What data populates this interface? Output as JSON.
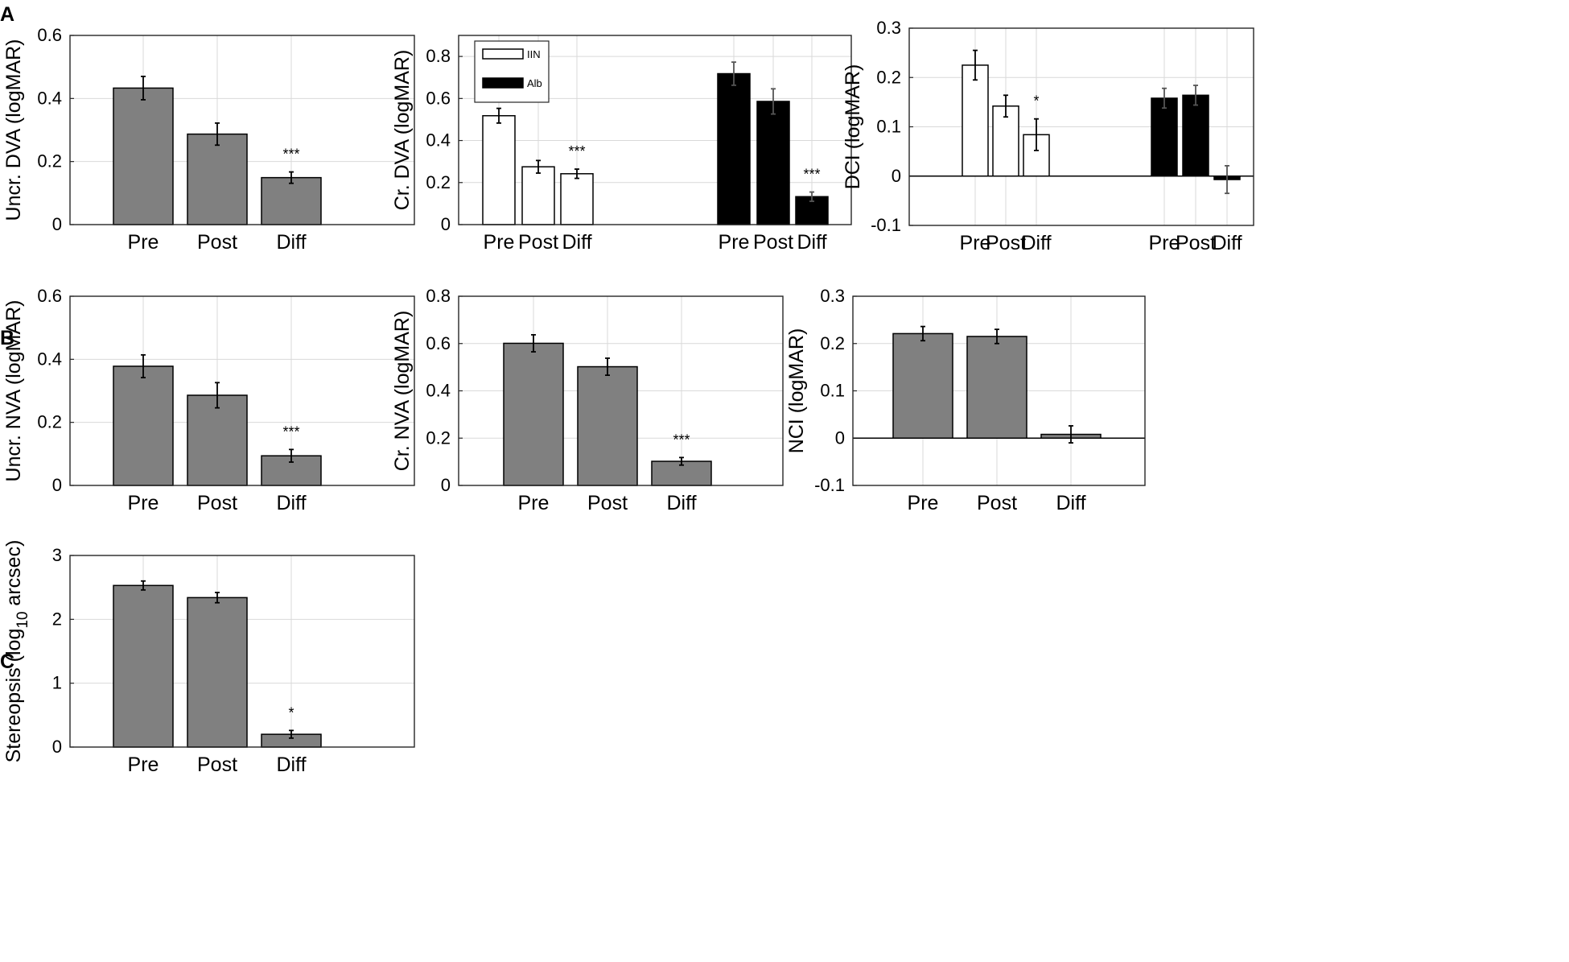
{
  "panel_labels": [
    "A",
    "B",
    "C"
  ],
  "colors": {
    "gray": "#808080",
    "black": "#000000",
    "white": "#ffffff",
    "grid": "#d9d9d9",
    "axis": "#262626"
  },
  "chart_data": [
    {
      "id": "A1",
      "type": "bar",
      "panel": "A",
      "title": "",
      "xlabel": "",
      "ylabel": "Uncr. DVA (logMAR)",
      "ylim": [
        0,
        0.6
      ],
      "yticks": [
        0,
        0.2,
        0.4,
        0.6
      ],
      "ytick_labels": [
        "0",
        "0.2",
        "0.4",
        "0.6"
      ],
      "groups": [
        {
          "name": "",
          "fill": "gray",
          "categories": [
            "Pre",
            "Post",
            "Diff"
          ],
          "values": [
            0.433,
            0.287,
            0.149
          ],
          "errors": [
            0.037,
            0.035,
            0.018
          ],
          "stars": [
            "",
            "",
            "***"
          ]
        }
      ]
    },
    {
      "id": "A2",
      "type": "bar",
      "panel": "A",
      "title": "",
      "xlabel": "",
      "ylabel": "Cr. DVA (logMAR)",
      "ylim": [
        0,
        0.9
      ],
      "yticks": [
        0,
        0.2,
        0.4,
        0.6,
        0.8
      ],
      "ytick_labels": [
        "0",
        "0.2",
        "0.4",
        "0.6",
        "0.8"
      ],
      "legend": [
        {
          "label": "IIN",
          "fill": "white"
        },
        {
          "label": "Alb",
          "fill": "black"
        }
      ],
      "groups": [
        {
          "name": "IIN",
          "fill": "white",
          "categories": [
            "Pre",
            "Post",
            "Diff"
          ],
          "values": [
            0.518,
            0.275,
            0.242
          ],
          "errors": [
            0.035,
            0.03,
            0.022
          ],
          "stars": [
            "",
            "",
            "***"
          ]
        },
        {
          "name": "Alb",
          "fill": "black",
          "categories": [
            "Pre",
            "Post",
            "Diff"
          ],
          "values": [
            0.718,
            0.586,
            0.133
          ],
          "errors": [
            0.055,
            0.06,
            0.022
          ],
          "stars": [
            "",
            "",
            "***"
          ]
        }
      ]
    },
    {
      "id": "A3",
      "type": "bar",
      "panel": "A",
      "title": "",
      "xlabel": "",
      "ylabel": "DCI (logMAR)",
      "ylim": [
        -0.1,
        0.3
      ],
      "yticks": [
        -0.1,
        0,
        0.1,
        0.2,
        0.3
      ],
      "ytick_labels": [
        "-0.1",
        "0",
        "0.1",
        "0.2",
        "0.3"
      ],
      "groups": [
        {
          "name": "IIN",
          "fill": "white",
          "categories": [
            "Pre",
            "Post",
            "Diff"
          ],
          "values": [
            0.225,
            0.142,
            0.084
          ],
          "errors": [
            0.03,
            0.022,
            0.032
          ],
          "stars": [
            "",
            "",
            "*"
          ]
        },
        {
          "name": "Alb",
          "fill": "black",
          "categories": [
            "Pre",
            "Post",
            "Diff"
          ],
          "values": [
            0.158,
            0.164,
            -0.007
          ],
          "errors": [
            0.02,
            0.02,
            0.028
          ],
          "stars": [
            "",
            "",
            ""
          ]
        }
      ]
    },
    {
      "id": "B1",
      "type": "bar",
      "panel": "B",
      "title": "",
      "xlabel": "",
      "ylabel": "Uncr. NVA (logMAR)",
      "ylim": [
        0,
        0.6
      ],
      "yticks": [
        0,
        0.2,
        0.4,
        0.6
      ],
      "ytick_labels": [
        "0",
        "0.2",
        "0.4",
        "0.6"
      ],
      "groups": [
        {
          "name": "",
          "fill": "gray",
          "categories": [
            "Pre",
            "Post",
            "Diff"
          ],
          "values": [
            0.378,
            0.286,
            0.094
          ],
          "errors": [
            0.036,
            0.04,
            0.02
          ],
          "stars": [
            "",
            "",
            "***"
          ]
        }
      ]
    },
    {
      "id": "B2",
      "type": "bar",
      "panel": "B",
      "title": "",
      "xlabel": "",
      "ylabel": "Cr. NVA (logMAR)",
      "ylim": [
        0,
        0.8
      ],
      "yticks": [
        0,
        0.2,
        0.4,
        0.6,
        0.8
      ],
      "ytick_labels": [
        "0",
        "0.2",
        "0.4",
        "0.6",
        "0.8"
      ],
      "groups": [
        {
          "name": "",
          "fill": "gray",
          "categories": [
            "Pre",
            "Post",
            "Diff"
          ],
          "values": [
            0.601,
            0.502,
            0.102
          ],
          "errors": [
            0.036,
            0.036,
            0.016
          ],
          "stars": [
            "",
            "",
            "***"
          ]
        }
      ]
    },
    {
      "id": "B3",
      "type": "bar",
      "panel": "B",
      "title": "",
      "xlabel": "",
      "ylabel": "NCI (logMAR)",
      "ylim": [
        -0.1,
        0.3
      ],
      "yticks": [
        -0.1,
        0,
        0.1,
        0.2,
        0.3
      ],
      "ytick_labels": [
        "-0.1",
        "0",
        "0.1",
        "0.2",
        "0.3"
      ],
      "groups": [
        {
          "name": "",
          "fill": "gray",
          "categories": [
            "Pre",
            "Post",
            "Diff"
          ],
          "values": [
            0.221,
            0.215,
            0.008
          ],
          "errors": [
            0.015,
            0.015,
            0.018
          ],
          "stars": [
            "",
            "",
            ""
          ]
        }
      ]
    },
    {
      "id": "C1",
      "type": "bar",
      "panel": "C",
      "title": "",
      "xlabel": "",
      "ylabel": "Stereopsis (log",
      "ylabel_subscript": "10",
      "ylabel_suffix": " arcsec)",
      "ylim": [
        0,
        3
      ],
      "yticks": [
        0,
        1,
        2,
        3
      ],
      "ytick_labels": [
        "0",
        "1",
        "2",
        "3"
      ],
      "groups": [
        {
          "name": "",
          "fill": "gray",
          "categories": [
            "Pre",
            "Post",
            "Diff"
          ],
          "values": [
            2.53,
            2.34,
            0.2
          ],
          "errors": [
            0.07,
            0.08,
            0.06
          ],
          "stars": [
            "",
            "",
            "*"
          ]
        }
      ]
    }
  ]
}
